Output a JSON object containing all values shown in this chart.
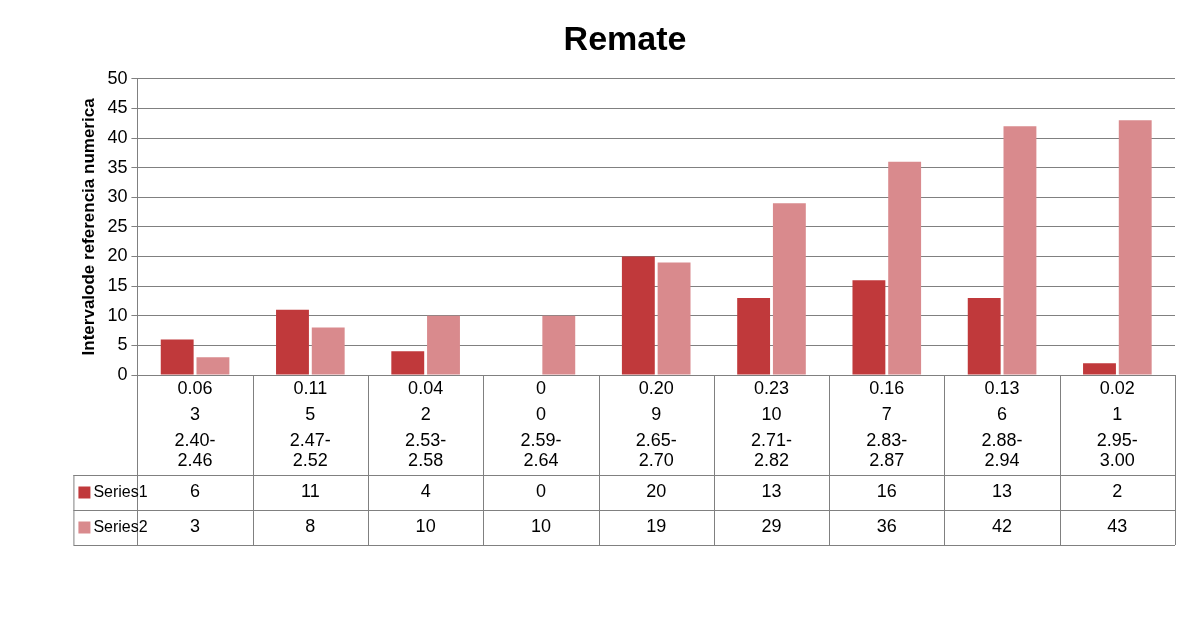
{
  "chart_data": {
    "type": "bar",
    "title": "Remate",
    "ylabel": "Intervalode referencia numerica",
    "categories": [
      "0.06\n3\n2.40-\n2.46",
      "0.11\n5\n2.47-\n2.52",
      "0.04\n2\n2.53-\n2.58",
      "0\n0\n2.59-\n2.64",
      "0.20\n9\n2.65-\n2.70",
      "0.23\n10\n2.71-\n2.82",
      "0.16\n7\n2.83-\n2.87",
      "0.13\n6\n2.88-\n2.94",
      "0.02\n1\n2.95-\n3.00"
    ],
    "series": [
      {
        "name": "Series1",
        "color": "#c0393b",
        "values": [
          6,
          11,
          4,
          0,
          20,
          13,
          16,
          13,
          2
        ]
      },
      {
        "name": "Series2",
        "color": "#d98a8d",
        "values": [
          3,
          8,
          10,
          10,
          19,
          29,
          36,
          42,
          43
        ]
      }
    ],
    "ylim": [
      0,
      50
    ],
    "yticks": [
      0,
      5,
      10,
      15,
      20,
      25,
      30,
      35,
      40,
      45,
      50
    ],
    "grid": "y",
    "data_labels": true,
    "legend": "bottom"
  }
}
